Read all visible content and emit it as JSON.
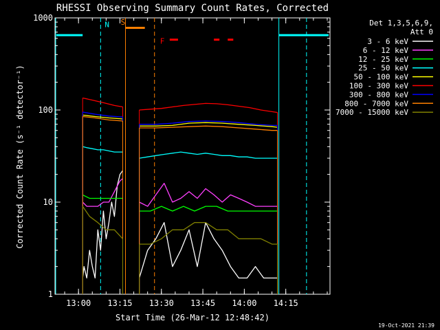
{
  "chart_data": {
    "type": "line",
    "title": "RHESSI Observing Summary Count Rates, Corrected",
    "xlabel": "Start Time (26-Mar-12 12:48:42)",
    "ylabel": "Corrected Count Rate (s⁻¹ detector⁻¹)",
    "scale_y": "log",
    "ylim": [
      1,
      1000
    ],
    "xlim_minutes": [
      -8.5,
      31.0
    ],
    "x_ticks": [
      {
        "m": 0,
        "label": "13:00"
      },
      {
        "m": 15,
        "label": "13:15"
      },
      {
        "m": 30,
        "label": "13:30"
      },
      {
        "m": 45,
        "label": "13:45"
      },
      {
        "m": 60,
        "label": "14:00"
      },
      {
        "m": 75,
        "label": "14:15"
      }
    ],
    "y_ticks": [
      {
        "v": 1,
        "label": "1"
      },
      {
        "v": 10,
        "label": "10"
      },
      {
        "v": 100,
        "label": "100"
      },
      {
        "v": 1000,
        "label": "1000"
      }
    ],
    "legend": {
      "header1": "Det 1,3,5,6,9,",
      "header2": "Att 0",
      "placement": "right"
    },
    "series": [
      {
        "name": "3 - 6 keV",
        "color": "#ffffff",
        "segments": [
          {
            "x": [
              1.5,
              2,
              3,
              4,
              5,
              6,
              7,
              8,
              9,
              10,
              11,
              12,
              13,
              14,
              15,
              16
            ],
            "y": [
              1.5,
              2,
              1.5,
              3,
              2,
              1.5,
              5,
              3,
              8,
              4,
              6,
              10,
              7,
              15,
              20,
              22
            ]
          },
          {
            "x": [
              22,
              25,
              28,
              31,
              34,
              37,
              40,
              43,
              46,
              49,
              52,
              55,
              58,
              61,
              64,
              67,
              70,
              72
            ],
            "y": [
              1.5,
              3,
              4,
              6,
              2,
              3,
              5,
              2,
              6,
              4,
              3,
              2,
              1.5,
              1.5,
              2,
              1.5,
              1.5,
              1.5
            ]
          }
        ]
      },
      {
        "name": "6 - 12 keV",
        "color": "#ff40ff",
        "segments": [
          {
            "x": [
              1.5,
              3,
              5,
              7,
              9,
              11,
              13,
              15,
              16
            ],
            "y": [
              10,
              9,
              9,
              9,
              10,
              10,
              13,
              17,
              18
            ]
          },
          {
            "x": [
              22,
              25,
              28,
              31,
              34,
              37,
              40,
              43,
              46,
              49,
              52,
              55,
              58,
              61,
              64,
              67,
              70,
              72
            ],
            "y": [
              10,
              9,
              12,
              16,
              10,
              11,
              13,
              11,
              14,
              12,
              10,
              12,
              11,
              10,
              9,
              9,
              9,
              9
            ]
          }
        ]
      },
      {
        "name": "12 - 25 keV",
        "color": "#00ff00",
        "segments": [
          {
            "x": [
              1.5,
              4,
              7,
              10,
              13,
              16
            ],
            "y": [
              12,
              11,
              11,
              11,
              11,
              11
            ]
          },
          {
            "x": [
              22,
              26,
              30,
              34,
              38,
              42,
              46,
              50,
              54,
              58,
              62,
              66,
              70,
              72
            ],
            "y": [
              8,
              8,
              9,
              8,
              9,
              8,
              9,
              9,
              8,
              8,
              8,
              8,
              8,
              8
            ]
          }
        ]
      },
      {
        "name": "25 - 50 keV",
        "color": "#00ffff",
        "segments": [
          {
            "x": [
              1.5,
              3,
              5,
              7,
              9,
              11,
              13,
              15,
              16
            ],
            "y": [
              40,
              39,
              38,
              37,
              37,
              36,
              35,
              35,
              35
            ]
          },
          {
            "x": [
              22,
              25,
              28,
              31,
              34,
              37,
              40,
              43,
              46,
              49,
              52,
              55,
              58,
              61,
              64,
              67,
              70,
              72
            ],
            "y": [
              30,
              31,
              32,
              33,
              34,
              35,
              34,
              33,
              34,
              33,
              32,
              32,
              31,
              31,
              30,
              30,
              30,
              30
            ]
          }
        ]
      },
      {
        "name": "50 - 100 keV",
        "color": "#ffff00",
        "segments": [
          {
            "x": [
              1.5,
              6,
              11,
              16
            ],
            "y": [
              88,
              85,
              82,
              80
            ]
          },
          {
            "x": [
              22,
              28,
              34,
              40,
              46,
              52,
              58,
              64,
              70,
              72
            ],
            "y": [
              67,
              67,
              68,
              72,
              73,
              72,
              70,
              68,
              66,
              65
            ]
          }
        ]
      },
      {
        "name": "100 - 300 keV",
        "color": "#ff0000",
        "segments": [
          {
            "x": [
              1.5,
              5,
              9,
              13,
              16
            ],
            "y": [
              135,
              128,
              120,
              112,
              108
            ]
          },
          {
            "x": [
              22,
              26,
              30,
              34,
              38,
              42,
              46,
              50,
              54,
              58,
              62,
              66,
              70,
              72
            ],
            "y": [
              100,
              102,
              104,
              108,
              112,
              115,
              118,
              117,
              114,
              110,
              106,
              100,
              96,
              94
            ]
          }
        ]
      },
      {
        "name": "300 - 800 keV",
        "color": "#0000ff",
        "segments": [
          {
            "x": [
              1.5,
              6,
              11,
              16
            ],
            "y": [
              95,
              90,
              86,
              84
            ]
          },
          {
            "x": [
              22,
              28,
              34,
              40,
              46,
              52,
              58,
              64,
              70,
              72
            ],
            "y": [
              70,
              70,
              72,
              75,
              76,
              75,
              73,
              70,
              68,
              68
            ]
          }
        ]
      },
      {
        "name": "800 - 7000 keV",
        "color": "#ff8000",
        "segments": [
          {
            "x": [
              1.5,
              6,
              11,
              16
            ],
            "y": [
              85,
              82,
              78,
              76
            ]
          },
          {
            "x": [
              22,
              28,
              34,
              40,
              46,
              52,
              58,
              64,
              70,
              72
            ],
            "y": [
              64,
              64,
              65,
              66,
              67,
              66,
              64,
              62,
              60,
              60
            ]
          }
        ]
      },
      {
        "name": "7000 - 15000 keV",
        "color": "#808000",
        "segments": [
          {
            "x": [
              1.5,
              4,
              7,
              10,
              13,
              16
            ],
            "y": [
              9,
              7,
              6,
              5,
              5,
              4
            ]
          },
          {
            "x": [
              22,
              26,
              30,
              34,
              38,
              42,
              46,
              50,
              54,
              58,
              62,
              66,
              70,
              72
            ],
            "y": [
              3.5,
              3.5,
              4,
              5,
              5,
              6,
              6,
              5,
              5,
              4,
              4,
              4,
              3.5,
              3.5
            ]
          }
        ]
      }
    ],
    "annotations": [
      {
        "text": "N",
        "color": "#00ffff"
      },
      {
        "text": "S",
        "color": "#ff8000"
      },
      {
        "text": "F",
        "color": "#ff0000"
      }
    ],
    "timestamp": "19-Oct-2021 21:39"
  }
}
